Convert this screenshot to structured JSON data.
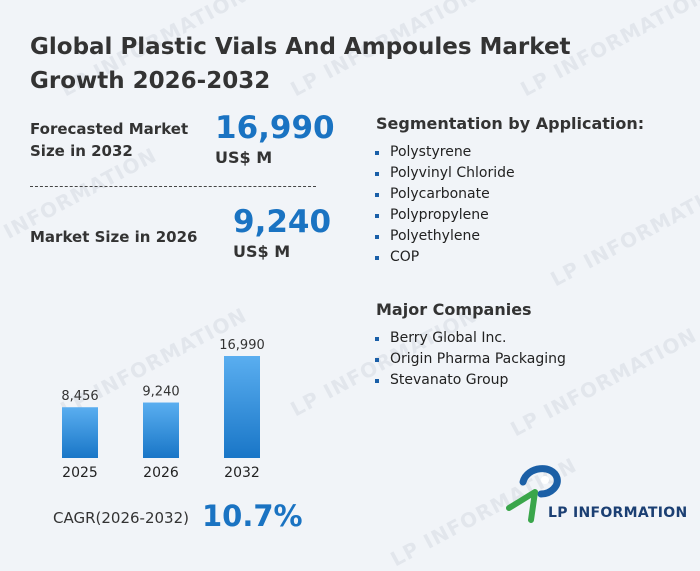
{
  "title": "Global Plastic Vials And Ampoules Market Growth 2026-2032",
  "forecast": {
    "label_line1": "Forecasted Market",
    "label_line2": "Size in 2032",
    "value": "16,990",
    "unit": "US$ M"
  },
  "current": {
    "label": "Market Size in 2026",
    "value": "9,240",
    "unit": "US$ M"
  },
  "segmentation": {
    "heading": "Segmentation by Application:",
    "items": [
      "Polystyrene",
      "Polyvinyl Chloride",
      "Polycarbonate",
      "Polypropylene",
      "Polyethylene",
      "COP"
    ]
  },
  "companies": {
    "heading": "Major Companies",
    "items": [
      "Berry Global Inc.",
      "Origin Pharma Packaging",
      "Stevanato Group"
    ]
  },
  "cagr": {
    "label": "CAGR(2026-2032)",
    "value": "10.7%"
  },
  "watermark_text": "LP INFORMATION",
  "logo": {
    "text": "LP INFORMATION",
    "colors": {
      "blue": "#1b5fa6",
      "green": "#3aa64b"
    }
  },
  "colors": {
    "accent": "#1a73c2",
    "bar_top": "#5aaef0",
    "bar_bottom": "#1976c7"
  },
  "chart_data": {
    "type": "bar",
    "categories": [
      "2025",
      "2026",
      "2032"
    ],
    "values": [
      8456,
      9240,
      16990
    ],
    "value_labels": [
      "8,456",
      "9,240",
      "16,990"
    ],
    "title": "",
    "xlabel": "",
    "ylabel": "",
    "ylim": [
      0,
      16990
    ],
    "grid": false,
    "legend": "none"
  }
}
